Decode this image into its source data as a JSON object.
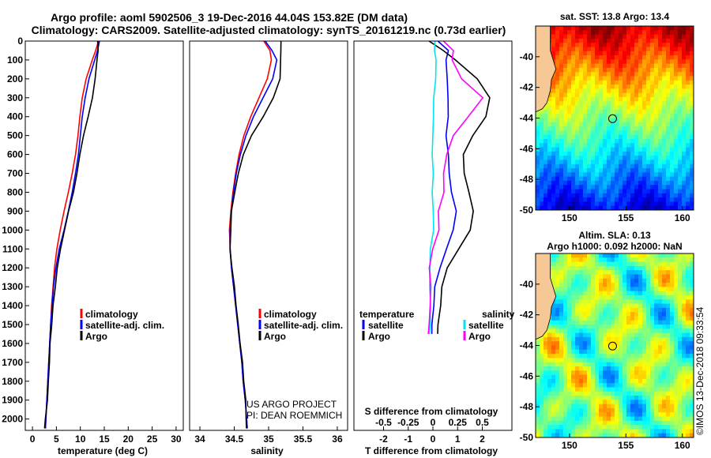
{
  "title_line1": "Argo profile: aoml 5902506_3 19-Dec-2016 44.04S 153.82E (DM data)",
  "title_line2": "Climatology: CARS2009. Satellite-adjusted climatology: synTS_20161219.nc (0.73d earlier)",
  "colors": {
    "climatology": "#ff0000",
    "satellite": "#0000ff",
    "argo": "#000000",
    "sat_dT": "#00e5ee",
    "sat_dS": "#0000ff",
    "argo_dT": "#ff00ff",
    "argo_dS": "#000000"
  },
  "chart_data": [
    {
      "type": "line",
      "xlabel": "temperature (deg C)",
      "ylim": [
        2060,
        0
      ],
      "xlim": [
        -1.5,
        31.5
      ],
      "xticks": [
        "0",
        "5",
        "10",
        "15",
        "20",
        "25",
        "30"
      ],
      "yticks": [
        "0",
        "100",
        "200",
        "300",
        "400",
        "500",
        "600",
        "700",
        "800",
        "900",
        "1000",
        "1100",
        "1200",
        "1300",
        "1400",
        "1500",
        "1600",
        "1700",
        "1800",
        "1900",
        "2000"
      ],
      "legend": [
        "climatology",
        "satellite-adj. clim.",
        "Argo"
      ],
      "depth": [
        0,
        50,
        100,
        200,
        300,
        400,
        500,
        600,
        700,
        800,
        900,
        1000,
        1100,
        1200,
        1300,
        1400,
        1500,
        1600,
        1700,
        1800,
        1900,
        2000,
        2050
      ],
      "series": [
        {
          "name": "climatology",
          "values": [
            13.8,
            13.2,
            12.5,
            11.2,
            10.4,
            9.9,
            9.5,
            9.0,
            8.3,
            7.5,
            6.6,
            5.8,
            5.1,
            4.6,
            4.3,
            4.0,
            3.8,
            3.6,
            3.4,
            3.2,
            3.0,
            2.8,
            2.7
          ]
        },
        {
          "name": "satellite-adj. clim.",
          "values": [
            14.0,
            13.6,
            13.0,
            11.8,
            11.0,
            10.4,
            10.0,
            9.6,
            9.0,
            8.3,
            7.5,
            6.6,
            5.6,
            4.9,
            4.4,
            4.1,
            3.8,
            3.6,
            3.4,
            3.2,
            3.0,
            2.8,
            2.7
          ]
        },
        {
          "name": "Argo",
          "values": [
            13.6,
            13.6,
            13.4,
            13.0,
            12.4,
            11.6,
            10.8,
            10.0,
            9.3,
            8.6,
            7.7,
            6.7,
            5.9,
            5.1,
            4.6,
            4.2,
            3.9,
            3.6,
            3.4,
            3.2,
            3.0,
            2.8,
            2.7
          ]
        }
      ]
    },
    {
      "type": "line",
      "xlabel": "salinity",
      "ylim": [
        2060,
        0
      ],
      "xlim": [
        33.85,
        36.15
      ],
      "xticks": [
        "34",
        "34.5",
        "35",
        "35.5",
        "36"
      ],
      "legend": [
        "climatology",
        "satellite-adj. clim.",
        "Argo"
      ],
      "note_line1": "US ARGO PROJECT",
      "note_line2": "PI: DEAN ROEMMICH",
      "depth": [
        0,
        50,
        100,
        200,
        300,
        400,
        500,
        600,
        700,
        800,
        900,
        1000,
        1100,
        1200,
        1300,
        1400,
        1500,
        1600,
        1700,
        1800,
        1900,
        2000,
        2050
      ],
      "series": [
        {
          "name": "climatology",
          "values": [
            34.93,
            35.02,
            35.04,
            34.98,
            34.86,
            34.74,
            34.64,
            34.57,
            34.52,
            34.48,
            34.45,
            34.43,
            34.44,
            34.46,
            34.49,
            34.52,
            34.55,
            34.58,
            34.61,
            34.63,
            34.66,
            34.68,
            34.69
          ]
        },
        {
          "name": "satellite-adj. clim.",
          "values": [
            34.95,
            35.05,
            35.12,
            35.06,
            34.92,
            34.78,
            34.67,
            34.59,
            34.53,
            34.49,
            34.46,
            34.44,
            34.44,
            34.46,
            34.49,
            34.52,
            34.55,
            34.58,
            34.61,
            34.63,
            34.66,
            34.68,
            34.69
          ]
        },
        {
          "name": "Argo",
          "values": [
            35.18,
            35.17,
            35.17,
            35.16,
            35.06,
            34.92,
            34.76,
            34.64,
            34.56,
            34.51,
            34.47,
            34.45,
            34.44,
            34.46,
            34.49,
            34.52,
            34.55,
            34.58,
            34.61,
            34.63,
            34.66,
            34.68,
            34.69
          ]
        }
      ]
    },
    {
      "type": "line",
      "xlabel": "T difference from climatology",
      "s_label": "S difference from climatology",
      "ylim": [
        2060,
        0
      ],
      "xlim": [
        -3.2,
        3.2
      ],
      "xticks": [
        "-2",
        "-1",
        "0",
        "1",
        "2"
      ],
      "s_ticks": [
        "-0.5",
        "-0.25",
        "0",
        "0.25",
        "0.5"
      ],
      "legend_left_title": "temperature",
      "legend_right_title": "salinity",
      "legend_left": [
        "satellite",
        "Argo"
      ],
      "legend_right": [
        "satellite",
        "Argo"
      ],
      "depth": [
        0,
        50,
        100,
        200,
        300,
        400,
        500,
        600,
        700,
        800,
        900,
        1000,
        1100,
        1200,
        1300,
        1400,
        1500,
        1550
      ],
      "series": [
        {
          "name": "satellite T",
          "values": [
            0.2,
            0.6,
            0.5,
            0.6,
            0.65,
            0.6,
            0.5,
            0.6,
            0.7,
            0.8,
            0.9,
            0.8,
            0.5,
            0.3,
            0.1,
            0.0,
            -0.05,
            -0.05
          ]
        },
        {
          "name": "Argo T",
          "values": [
            -0.2,
            0.4,
            0.9,
            1.8,
            2.3,
            2.1,
            1.6,
            1.2,
            1.3,
            1.5,
            1.6,
            1.5,
            1.0,
            0.6,
            0.4,
            0.3,
            0.2,
            0.2
          ]
        },
        {
          "name": "satellite S",
          "values": [
            0.02,
            0.01,
            0.04,
            0.03,
            0.01,
            0.0,
            -0.01,
            0.0,
            0.01,
            0.0,
            0.0,
            0.0,
            -0.02,
            -0.03,
            -0.03,
            -0.03,
            -0.03,
            -0.03
          ]
        },
        {
          "name": "Argo S",
          "values": [
            0.1,
            0.2,
            0.2,
            0.3,
            0.5,
            0.35,
            0.2,
            0.15,
            0.12,
            0.1,
            0.05,
            0.05,
            0.0,
            -0.03,
            -0.03,
            -0.03,
            -0.04,
            -0.04
          ]
        }
      ]
    }
  ],
  "maps": [
    {
      "type": "heatmap",
      "title": "sat. SST: 13.8 Argo: 13.4",
      "xticks": [
        "150",
        "155",
        "160"
      ],
      "yticks": [
        "-40",
        "-42",
        "-44",
        "-46",
        "-48",
        "-50"
      ],
      "xlim": [
        147,
        161
      ],
      "ylim": [
        -50,
        -38
      ]
    },
    {
      "type": "heatmap",
      "title_line1": "Altim. SLA: 0.13",
      "title_line2": "Argo h1000: 0.092 h2000: NaN",
      "xticks": [
        "150",
        "155",
        "160"
      ],
      "yticks": [
        "-40",
        "-42",
        "-44",
        "-46",
        "-48",
        "-50"
      ],
      "xlim": [
        147,
        161
      ],
      "ylim": [
        -50,
        -38
      ]
    }
  ],
  "float_position": {
    "lon": 153.82,
    "lat": -44.04
  },
  "credit": "©IMOS 13-Dec-2018 09:33:54"
}
